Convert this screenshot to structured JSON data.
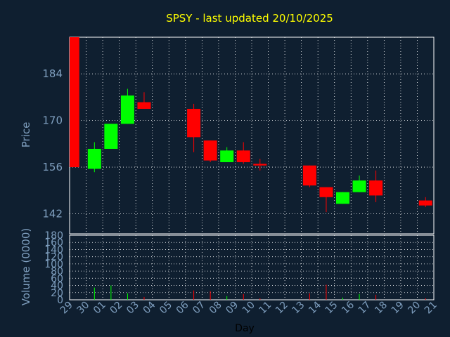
{
  "chart_data": {
    "type": "candlestick",
    "title": "SPSY - last updated 20/10/2025",
    "xlabel": "Day",
    "ylabel": "Price",
    "volume_label": "Volume (0000)",
    "x_ticks": [
      "29",
      "30",
      "01",
      "02",
      "03",
      "04",
      "05",
      "06",
      "07",
      "08",
      "09",
      "10",
      "11",
      "12",
      "13",
      "14",
      "15",
      "16",
      "17",
      "18",
      "19",
      "20",
      "21"
    ],
    "price_ticks": [
      184,
      170,
      156,
      142
    ],
    "volume_ticks": [
      0,
      20,
      40,
      60,
      80,
      100,
      120,
      140,
      160,
      180
    ],
    "price_range": [
      136,
      195
    ],
    "volume_range": [
      0,
      180
    ],
    "grid": true,
    "colors": {
      "up": "#00ff00",
      "down": "#ff0000",
      "background": "#0f1f30",
      "grid": "#ffffff",
      "title": "#ffff00",
      "axis_text": "#7f9fbf"
    },
    "candles": [
      {
        "day": "29",
        "open": 195.0,
        "high": 195.0,
        "low": 156.0,
        "close": 156.0,
        "volume": 0
      },
      {
        "day": "30",
        "open": 155.5,
        "high": 163.5,
        "low": 154.5,
        "close": 161.5,
        "volume": 34
      },
      {
        "day": "01",
        "open": 161.5,
        "high": 169.0,
        "low": 161.5,
        "close": 169.0,
        "volume": 40
      },
      {
        "day": "02",
        "open": 169.0,
        "high": 179.5,
        "low": 169.0,
        "close": 177.5,
        "volume": 18
      },
      {
        "day": "03",
        "open": 175.5,
        "high": 178.5,
        "low": 173.5,
        "close": 173.5,
        "volume": 8
      },
      {
        "day": "06",
        "open": 173.5,
        "high": 175.0,
        "low": 160.5,
        "close": 165.0,
        "volume": 26
      },
      {
        "day": "07",
        "open": 164.0,
        "high": 164.0,
        "low": 157.5,
        "close": 158.0,
        "volume": 24
      },
      {
        "day": "08",
        "open": 157.5,
        "high": 162.0,
        "low": 157.5,
        "close": 161.0,
        "volume": 10
      },
      {
        "day": "09",
        "open": 161.0,
        "high": 163.5,
        "low": 157.0,
        "close": 157.5,
        "volume": 16
      },
      {
        "day": "10",
        "open": 157.0,
        "high": 158.5,
        "low": 155.0,
        "close": 156.5,
        "volume": 4
      },
      {
        "day": "13",
        "open": 156.5,
        "high": 156.5,
        "low": 150.0,
        "close": 150.5,
        "volume": 18
      },
      {
        "day": "14",
        "open": 150.0,
        "high": 150.0,
        "low": 142.5,
        "close": 147.0,
        "volume": 42
      },
      {
        "day": "15",
        "open": 145.0,
        "high": 148.5,
        "low": 145.0,
        "close": 148.5,
        "volume": 6
      },
      {
        "day": "16",
        "open": 148.5,
        "high": 153.5,
        "low": 148.5,
        "close": 152.0,
        "volume": 16
      },
      {
        "day": "17",
        "open": 152.0,
        "high": 155.0,
        "low": 145.5,
        "close": 147.5,
        "volume": 14
      },
      {
        "day": "20",
        "open": 146.0,
        "high": 147.0,
        "low": 144.0,
        "close": 144.5,
        "volume": 4
      }
    ]
  }
}
